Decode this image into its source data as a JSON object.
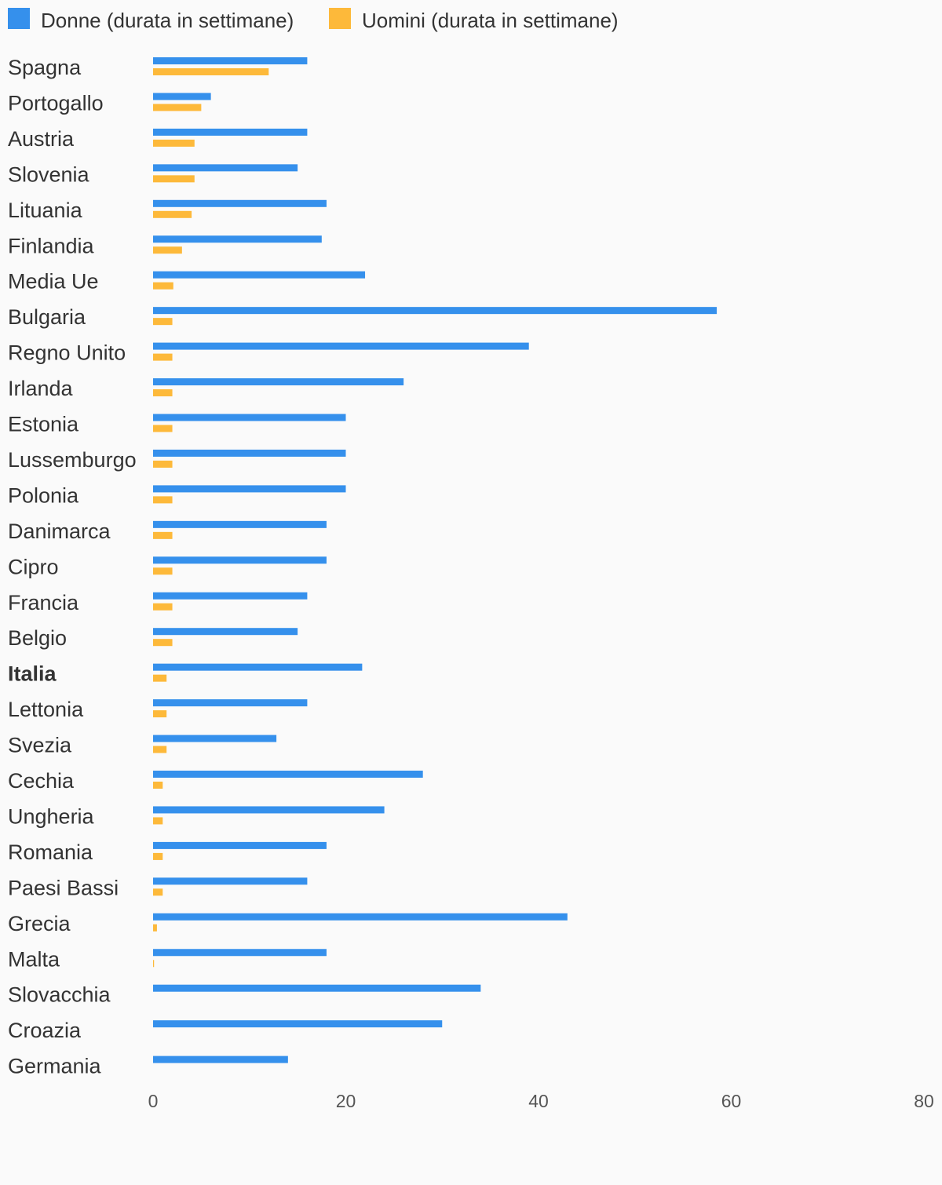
{
  "colors": {
    "women": "#3590ec",
    "men": "#fdb93a",
    "text": "#333333",
    "tick": "#555555"
  },
  "chart_data": {
    "type": "bar",
    "orientation": "horizontal",
    "legend": "top-left",
    "grid": false,
    "xlim": [
      0,
      80
    ],
    "xticks": [
      0,
      20,
      40,
      60,
      80
    ],
    "highlight": "Italia",
    "categories": [
      "Spagna",
      "Portogallo",
      "Austria",
      "Slovenia",
      "Lituania",
      "Finlandia",
      "Media Ue",
      "Bulgaria",
      "Regno Unito",
      "Irlanda",
      "Estonia",
      "Lussemburgo",
      "Polonia",
      "Danimarca",
      "Cipro",
      "Francia",
      "Belgio",
      "Italia",
      "Lettonia",
      "Svezia",
      "Cechia",
      "Ungheria",
      "Romania",
      "Paesi Bassi",
      "Grecia",
      "Malta",
      "Slovacchia",
      "Croazia",
      "Germania"
    ],
    "series": [
      {
        "name": "Donne (durata in settimane)",
        "color": "#3590ec",
        "values": [
          16,
          6,
          16,
          15,
          18,
          17.5,
          22,
          58.5,
          39,
          26,
          20,
          20,
          20,
          18,
          18,
          16,
          15,
          21.7,
          16,
          12.8,
          28,
          24,
          18,
          16,
          43,
          18,
          34,
          30,
          14
        ]
      },
      {
        "name": "Uomini (durata in settimane)",
        "color": "#fdb93a",
        "values": [
          12,
          5,
          4.3,
          4.3,
          4,
          3,
          2.1,
          2,
          2,
          2,
          2,
          2,
          2,
          2,
          2,
          2,
          2,
          1.4,
          1.4,
          1.4,
          1,
          1,
          1,
          1,
          0.4,
          0.1,
          0,
          0,
          0
        ]
      }
    ]
  }
}
